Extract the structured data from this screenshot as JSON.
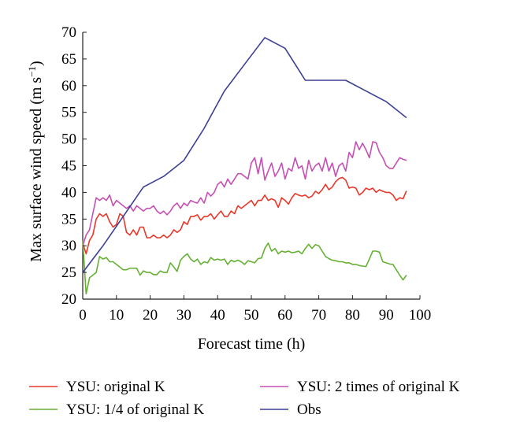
{
  "chart_data": {
    "type": "line",
    "xlabel": "Forecast time (h)",
    "ylabel": "Max surface wind speed (m s",
    "ylabel_superscript": "−1",
    "ylabel_close": ")",
    "xlim": [
      0,
      100
    ],
    "ylim": [
      20,
      70
    ],
    "xticks": [
      0,
      10,
      20,
      30,
      40,
      50,
      60,
      70,
      80,
      90,
      100
    ],
    "yticks": [
      20,
      25,
      30,
      35,
      40,
      45,
      50,
      55,
      60,
      65,
      70
    ],
    "grid": false,
    "legend_position": "bottom",
    "series": [
      {
        "name": "YSU: original K",
        "color": "#e8382b",
        "x": [
          0,
          1,
          2,
          3,
          4,
          5,
          6,
          7,
          8,
          9,
          10,
          11,
          12,
          13,
          14,
          15,
          16,
          17,
          18,
          19,
          20,
          21,
          22,
          23,
          24,
          25,
          26,
          27,
          28,
          29,
          30,
          31,
          32,
          33,
          34,
          35,
          36,
          37,
          38,
          39,
          40,
          41,
          42,
          43,
          44,
          45,
          46,
          47,
          48,
          49,
          50,
          51,
          52,
          53,
          54,
          55,
          56,
          57,
          58,
          59,
          60,
          61,
          62,
          63,
          64,
          65,
          66,
          67,
          68,
          69,
          70,
          71,
          72,
          73,
          74,
          75,
          76,
          77,
          78,
          79,
          80,
          81,
          82,
          83,
          84,
          85,
          86,
          87,
          88,
          89,
          90,
          91,
          92,
          93,
          94,
          95,
          96
        ],
        "values": [
          30.5,
          28.5,
          31,
          32,
          35,
          36,
          35.5,
          36,
          34.5,
          33.5,
          34,
          36,
          35.5,
          32.5,
          32,
          33,
          32,
          33.5,
          33.5,
          31.5,
          31.5,
          32,
          31.5,
          31.5,
          32,
          31.5,
          32,
          33,
          32.5,
          33,
          34.5,
          34,
          35.5,
          35.5,
          35.8,
          34.8,
          35.5,
          35.5,
          36,
          35,
          35.8,
          36.5,
          35.5,
          35.5,
          36.5,
          36,
          37.5,
          37,
          37.5,
          38,
          38.5,
          37.5,
          38.5,
          38.5,
          39.5,
          38.5,
          38.8,
          38.5,
          37.2,
          39,
          38.5,
          37.8,
          39,
          39.8,
          39.5,
          39.3,
          39.5,
          39,
          39.3,
          40.2,
          39.8,
          40.5,
          41.5,
          40.5,
          41,
          42,
          42.6,
          42.8,
          42.3,
          40.8,
          41,
          40.8,
          39.5,
          40,
          40.8,
          40.5,
          40.8,
          40,
          40.5,
          40.2,
          40,
          40,
          39.5,
          38.5,
          39,
          38.8,
          40.3
        ]
      },
      {
        "name": "YSU: 2 times of original K",
        "color": "#c64fb3",
        "x": [
          0,
          1,
          2,
          3,
          4,
          5,
          6,
          7,
          8,
          9,
          10,
          11,
          12,
          13,
          14,
          15,
          16,
          17,
          18,
          19,
          20,
          21,
          22,
          23,
          24,
          25,
          26,
          27,
          28,
          29,
          30,
          31,
          32,
          33,
          34,
          35,
          36,
          37,
          38,
          39,
          40,
          41,
          42,
          43,
          44,
          45,
          46,
          47,
          48,
          49,
          50,
          51,
          52,
          53,
          54,
          55,
          56,
          57,
          58,
          59,
          60,
          61,
          62,
          63,
          64,
          65,
          66,
          67,
          68,
          69,
          70,
          71,
          72,
          73,
          74,
          75,
          76,
          77,
          78,
          79,
          80,
          81,
          82,
          83,
          84,
          85,
          86,
          87,
          88,
          89,
          90,
          91,
          92,
          93,
          94,
          95,
          96
        ],
        "values": [
          30,
          32,
          33,
          36,
          39,
          38.5,
          39,
          38.5,
          39.5,
          37.5,
          38.5,
          38,
          37.5,
          37,
          37.5,
          36.5,
          37.5,
          37,
          36.5,
          37,
          37,
          37.5,
          36.5,
          36,
          36.5,
          35.8,
          36.5,
          37.5,
          38,
          37,
          38,
          37.5,
          38.5,
          38.2,
          38,
          39,
          38,
          40,
          39.3,
          40,
          41.5,
          42,
          41,
          42.5,
          41.5,
          42.5,
          43.5,
          43.5,
          43,
          42.5,
          45.5,
          46.5,
          43.5,
          46.5,
          42.3,
          44,
          45.5,
          43,
          44,
          45.5,
          42.5,
          44.5,
          44,
          46.5,
          44.5,
          45,
          42.5,
          46,
          44,
          45,
          45.5,
          44,
          46.5,
          44,
          45.5,
          43,
          45,
          45.5,
          44,
          47.5,
          46.5,
          49.5,
          48,
          49.2,
          48,
          46.5,
          49.5,
          49.3,
          47.5,
          46.5,
          45,
          44.5,
          44.5,
          45.5,
          46.5,
          46.2,
          46
        ]
      },
      {
        "name": "YSU: 1/4 of original K",
        "color": "#66b134",
        "x": [
          0,
          1,
          2,
          3,
          4,
          5,
          6,
          7,
          8,
          9,
          10,
          11,
          12,
          13,
          14,
          15,
          16,
          17,
          18,
          19,
          20,
          21,
          22,
          23,
          24,
          25,
          26,
          27,
          28,
          29,
          30,
          31,
          32,
          33,
          34,
          35,
          36,
          37,
          38,
          39,
          40,
          41,
          42,
          43,
          44,
          45,
          46,
          47,
          48,
          49,
          50,
          51,
          52,
          53,
          54,
          55,
          56,
          57,
          58,
          59,
          60,
          61,
          62,
          63,
          64,
          65,
          66,
          67,
          68,
          69,
          70,
          71,
          72,
          73,
          74,
          75,
          76,
          77,
          78,
          79,
          80,
          81,
          82,
          83,
          84,
          85,
          86,
          87,
          88,
          89,
          90,
          91,
          92,
          93,
          94,
          95,
          96
        ],
        "values": [
          31,
          21,
          24,
          24.5,
          25,
          28,
          27.5,
          27.8,
          27,
          27,
          26.5,
          26,
          25.5,
          25.5,
          25.8,
          25.8,
          25.8,
          24.5,
          25.3,
          25,
          25,
          24.6,
          24.6,
          25.3,
          25,
          25,
          26.8,
          26,
          25.2,
          27.3,
          28,
          28.5,
          27.5,
          27,
          27.5,
          26.5,
          27,
          26.8,
          27.8,
          27.3,
          27.5,
          27.3,
          27.5,
          26.5,
          27.3,
          27,
          27.3,
          27,
          26.5,
          27.2,
          27,
          26.8,
          27.6,
          27.7,
          29.5,
          30.5,
          29,
          29.5,
          28.5,
          29,
          28.8,
          29,
          28.7,
          28.8,
          29,
          28.5,
          29.5,
          30.3,
          29.5,
          30.2,
          30,
          29,
          28,
          27.6,
          27.3,
          27.2,
          27,
          27,
          26.8,
          26.8,
          26.5,
          26.5,
          26.3,
          26.2,
          26.1,
          27.5,
          29,
          29,
          28.8,
          27,
          26.8,
          26.6,
          26.5,
          25.5,
          24.5,
          23.6,
          24.5
        ]
      },
      {
        "name": "Obs",
        "color": "#3c3f94",
        "x": [
          0,
          6,
          12,
          18,
          24,
          30,
          36,
          42,
          48,
          54,
          60,
          66,
          72,
          78,
          84,
          90,
          96
        ],
        "values": [
          25,
          30,
          35.5,
          41,
          43,
          46,
          52,
          59,
          64,
          69,
          67,
          61,
          61,
          61,
          59,
          57,
          54
        ]
      }
    ],
    "legend_order": [
      0,
      1,
      2,
      3
    ]
  }
}
